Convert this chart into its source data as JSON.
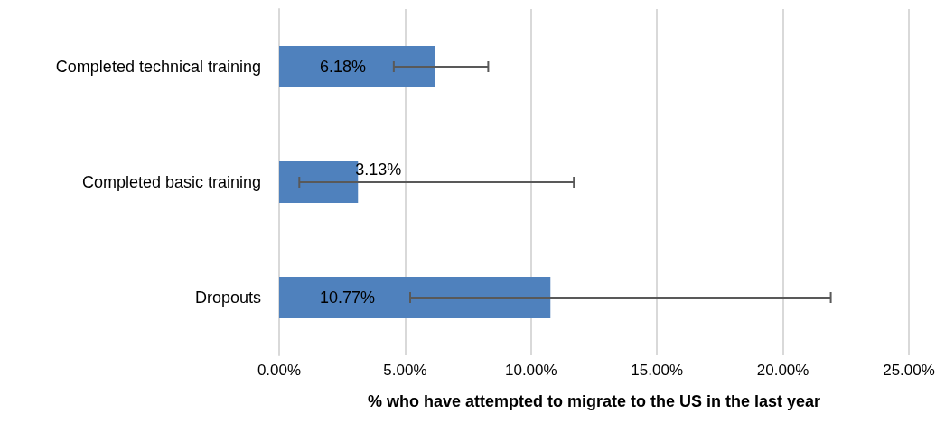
{
  "chart_data": {
    "type": "bar",
    "orientation": "horizontal",
    "categories": [
      "Completed technical training",
      "Completed basic training",
      "Dropouts"
    ],
    "values": [
      6.18,
      3.13,
      10.77
    ],
    "value_labels": [
      "6.18%",
      "3.13%",
      "10.77%"
    ],
    "errors": [
      [
        4.55,
        8.3
      ],
      [
        0.8,
        11.7
      ],
      [
        5.2,
        21.9
      ]
    ],
    "color": "#4f81bd",
    "xlabel": "% who have attempted to migrate to the US in the last year",
    "xlim": [
      0,
      25
    ],
    "xticks": [
      {
        "value": 0,
        "label": "0.00%"
      },
      {
        "value": 5,
        "label": "5.00%"
      },
      {
        "value": 10,
        "label": "10.00%"
      },
      {
        "value": 15,
        "label": "15.00%"
      },
      {
        "value": 20,
        "label": "20.00%"
      },
      {
        "value": 25,
        "label": "25.00%"
      }
    ],
    "grid": "x"
  }
}
